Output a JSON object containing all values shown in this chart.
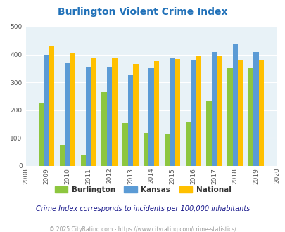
{
  "title": "Burlington Violent Crime Index",
  "years": [
    2009,
    2010,
    2011,
    2012,
    2013,
    2014,
    2015,
    2016,
    2017,
    2018,
    2019
  ],
  "burlington": [
    228,
    75,
    40,
    265,
    153,
    118,
    113,
    157,
    233,
    352,
    352
  ],
  "kansas": [
    400,
    370,
    355,
    355,
    328,
    350,
    390,
    380,
    410,
    440,
    410
  ],
  "national": [
    430,
    405,
    387,
    387,
    367,
    376,
    383,
    395,
    395,
    380,
    379
  ],
  "bar_colors": {
    "burlington": "#8dc63f",
    "kansas": "#5b9bd5",
    "national": "#ffc000"
  },
  "xlim": [
    2008,
    2020
  ],
  "ylim": [
    0,
    500
  ],
  "yticks": [
    0,
    100,
    200,
    300,
    400,
    500
  ],
  "background_color": "#e8f2f7",
  "grid_color": "#ffffff",
  "title_color": "#2272b9",
  "title_fontsize": 10,
  "subtitle": "Crime Index corresponds to incidents per 100,000 inhabitants",
  "footer": "© 2025 CityRating.com - https://www.cityrating.com/crime-statistics/",
  "legend_labels": [
    "Burlington",
    "Kansas",
    "National"
  ],
  "bar_width": 0.25,
  "xtick_years": [
    2008,
    2009,
    2010,
    2011,
    2012,
    2013,
    2014,
    2015,
    2016,
    2017,
    2018,
    2019,
    2020
  ]
}
